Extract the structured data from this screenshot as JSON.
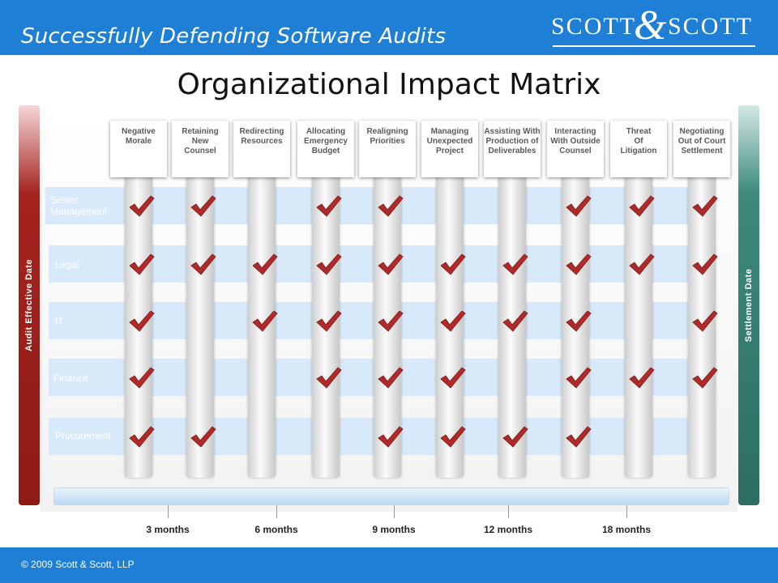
{
  "header": {
    "title": "Successfully Defending Software Audits"
  },
  "logo": {
    "left": "SCOTT",
    "amp": "&",
    "right": "SCOTT"
  },
  "page_title": "Organizational Impact Matrix",
  "left_bar_label": "Audit Effective Date",
  "right_bar_label": "Settlement Date",
  "columns": [
    "Negative\nMorale",
    "Retaining\nNew\nCounsel",
    "Redirecting\nResources",
    "Allocating\nEmergency\nBudget",
    "Realigning\nPriorities",
    "Managing\nUnexpected\nProject",
    "Assisting With\nProduction of\nDeliverables",
    "Interacting\nWith Outside\nCounsel",
    "Threat\nOf\nLitigation",
    "Negotiating\nOut of Court\nSettlement"
  ],
  "rows": [
    {
      "label": "Senior\nManagement",
      "checks": [
        1,
        1,
        0,
        1,
        1,
        0,
        0,
        1,
        1,
        1
      ]
    },
    {
      "label": "Legal",
      "checks": [
        1,
        1,
        1,
        1,
        1,
        1,
        1,
        1,
        1,
        1
      ]
    },
    {
      "label": "IT",
      "checks": [
        1,
        0,
        1,
        1,
        1,
        1,
        1,
        1,
        0,
        1
      ]
    },
    {
      "label": "Finance",
      "checks": [
        1,
        0,
        0,
        1,
        1,
        1,
        0,
        1,
        1,
        1
      ]
    },
    {
      "label": "Procurement",
      "checks": [
        1,
        1,
        0,
        0,
        1,
        1,
        1,
        1,
        0,
        0
      ]
    }
  ],
  "timeline": [
    "3 months",
    "6 months",
    "9 months",
    "12 months",
    "18 months"
  ],
  "colors": {
    "blue": "#1f7fd4",
    "check": "#b02a2a",
    "left_bar": "#8e1a16",
    "right_bar": "#2e6e63"
  },
  "footer": {
    "copyright": "© 2009 Scott & Scott, LLP"
  }
}
